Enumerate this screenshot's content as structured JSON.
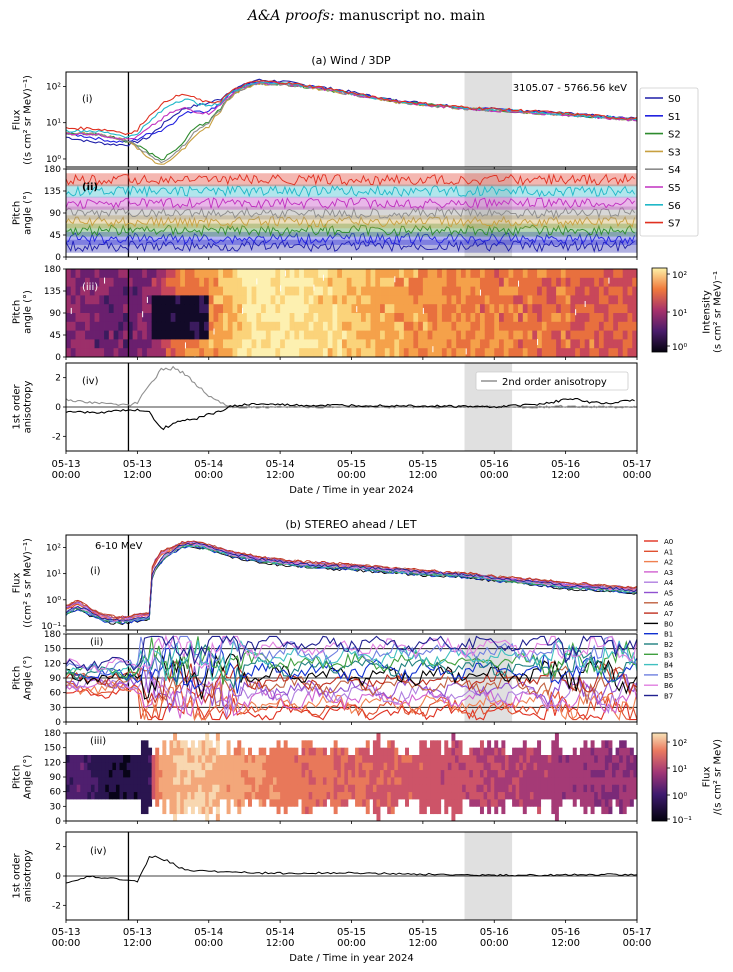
{
  "header": {
    "italic": "A&A proofs:",
    "rest": "manuscript no. main"
  },
  "colors": {
    "wind_sectors": [
      "#1f1fa8",
      "#2222e0",
      "#2e8b2e",
      "#c8a040",
      "#8c8c8c",
      "#c030c0",
      "#20b8c8",
      "#e03020"
    ],
    "stereo_sectors": [
      "#e03020",
      "#e05030",
      "#f08050",
      "#d060d0",
      "#b080e0",
      "#9050d0",
      "#c06040",
      "#c03020",
      "#000000",
      "#1030d0",
      "#208080",
      "#40a040",
      "#40c0c0",
      "#7080e0",
      "#e080e0",
      "#202090"
    ],
    "shade": "#e0e0e0",
    "event_line": "#000000"
  },
  "chart_data": [
    {
      "type": "line",
      "title": "(a) Wind / 3DP",
      "panel": "(i)",
      "annotation": "3105.07 - 5766.56 keV",
      "ylabel": "Flux\n((s cm² sr MeV)⁻¹)",
      "yscale": "log",
      "ylim": [
        0.6,
        250
      ],
      "yticks": [
        "10⁰",
        "10¹",
        "10²"
      ],
      "xlim": [
        0,
        96
      ],
      "x_unit": "hours since 2024-05-13 00:00",
      "event_x": 10.5,
      "shade": [
        67,
        75
      ],
      "legend": [
        "S0",
        "S1",
        "S2",
        "S3",
        "S4",
        "S5",
        "S6",
        "S7"
      ],
      "series": [
        {
          "name": "S0",
          "x": [
            0,
            4,
            8,
            10.5,
            12,
            14,
            16,
            18,
            20,
            22,
            24,
            26,
            28,
            30,
            32,
            36,
            40,
            44,
            48,
            52,
            56,
            60,
            64,
            68,
            72,
            76,
            80,
            84,
            88,
            92,
            96
          ],
          "values": [
            4,
            3,
            2.5,
            2.5,
            3,
            4,
            8,
            15,
            25,
            30,
            35,
            45,
            80,
            110,
            150,
            140,
            110,
            90,
            70,
            50,
            40,
            35,
            30,
            25,
            24,
            22,
            20,
            18,
            16,
            14,
            13
          ]
        },
        {
          "name": "S1",
          "x": [
            0,
            4,
            8,
            10.5,
            12,
            14,
            16,
            18,
            20,
            22,
            24,
            26,
            28,
            30,
            32,
            36,
            40,
            44,
            48,
            52,
            56,
            60,
            64,
            68,
            72,
            76,
            80,
            84,
            88,
            92,
            96
          ],
          "values": [
            5,
            4,
            3,
            3,
            3.5,
            5,
            6,
            10,
            18,
            22,
            20,
            35,
            70,
            100,
            130,
            125,
            105,
            85,
            65,
            48,
            38,
            33,
            28,
            25,
            23,
            21,
            19,
            17,
            15,
            14,
            12
          ]
        },
        {
          "name": "S2",
          "x": [
            0,
            4,
            8,
            10.5,
            12,
            14,
            16,
            18,
            20,
            22,
            24,
            26,
            28,
            30,
            32,
            36,
            40,
            44,
            48,
            52,
            56,
            60,
            64,
            68,
            72,
            76,
            80,
            84,
            88,
            92,
            96
          ],
          "values": [
            5,
            5,
            4,
            3,
            2.5,
            1.5,
            0.9,
            1.5,
            3,
            8,
            10,
            25,
            60,
            95,
            120,
            120,
            100,
            80,
            62,
            47,
            37,
            32,
            28,
            24,
            22,
            20,
            18,
            17,
            15,
            13,
            12
          ]
        },
        {
          "name": "S3",
          "x": [
            0,
            4,
            8,
            10.5,
            12,
            14,
            16,
            18,
            20,
            22,
            24,
            26,
            28,
            30,
            32,
            36,
            40,
            44,
            48,
            52,
            56,
            60,
            64,
            68,
            72,
            76,
            80,
            84,
            88,
            92,
            96
          ],
          "values": [
            5,
            5,
            4,
            3,
            2,
            1,
            0.7,
            1,
            2,
            5,
            8,
            20,
            55,
            90,
            115,
            115,
            98,
            78,
            60,
            46,
            36,
            31,
            27,
            24,
            22,
            20,
            18,
            16,
            15,
            13,
            12
          ]
        },
        {
          "name": "S4",
          "x": [
            0,
            4,
            8,
            10.5,
            12,
            14,
            16,
            18,
            20,
            22,
            24,
            26,
            28,
            30,
            32,
            36,
            40,
            44,
            48,
            52,
            56,
            60,
            64,
            68,
            72,
            76,
            80,
            84,
            88,
            92,
            96
          ],
          "values": [
            5,
            5,
            4,
            3,
            2.2,
            1.2,
            0.8,
            1.2,
            2.5,
            6,
            9,
            22,
            58,
            92,
            118,
            118,
            99,
            79,
            61,
            46,
            36,
            31,
            27,
            24,
            22,
            20,
            18,
            16,
            15,
            13,
            12
          ]
        },
        {
          "name": "S5",
          "x": [
            0,
            4,
            8,
            10.5,
            12,
            14,
            16,
            18,
            20,
            22,
            24,
            26,
            28,
            30,
            32,
            36,
            40,
            44,
            48,
            52,
            56,
            60,
            64,
            68,
            72,
            76,
            80,
            84,
            88,
            92,
            96
          ],
          "values": [
            5,
            5,
            4,
            3.5,
            4,
            7,
            12,
            20,
            25,
            20,
            18,
            30,
            65,
            100,
            125,
            120,
            100,
            82,
            63,
            47,
            37,
            32,
            28,
            24,
            22,
            20,
            18,
            17,
            15,
            13,
            12
          ]
        },
        {
          "name": "S6",
          "x": [
            0,
            4,
            8,
            10.5,
            12,
            14,
            16,
            18,
            20,
            22,
            24,
            26,
            28,
            30,
            32,
            36,
            40,
            44,
            48,
            52,
            56,
            60,
            64,
            68,
            72,
            76,
            80,
            84,
            88,
            92,
            96
          ],
          "values": [
            6,
            6,
            5,
            4,
            5,
            10,
            20,
            35,
            45,
            35,
            28,
            35,
            70,
            105,
            130,
            125,
            105,
            85,
            65,
            48,
            38,
            33,
            28,
            25,
            23,
            21,
            19,
            17,
            15,
            14,
            12
          ]
        },
        {
          "name": "S7",
          "x": [
            0,
            4,
            8,
            10.5,
            12,
            14,
            16,
            18,
            20,
            22,
            24,
            26,
            28,
            30,
            32,
            36,
            40,
            44,
            48,
            52,
            56,
            60,
            64,
            68,
            72,
            76,
            80,
            84,
            88,
            92,
            96
          ],
          "values": [
            7,
            7,
            6,
            5,
            6,
            15,
            30,
            50,
            60,
            45,
            35,
            40,
            75,
            110,
            140,
            130,
            108,
            88,
            66,
            49,
            39,
            34,
            29,
            26,
            24,
            22,
            20,
            18,
            16,
            14,
            13
          ]
        }
      ]
    },
    {
      "type": "line",
      "panel": "(ii)",
      "ylabel": "Pitch\nangle (°)",
      "ylim": [
        0,
        180
      ],
      "yticks": [
        "0",
        "45",
        "90",
        "135",
        "180"
      ],
      "xlim": [
        0,
        96
      ],
      "series": [
        {
          "name": "S0",
          "x": [
            0,
            96
          ],
          "values": [
            22,
            22
          ]
        },
        {
          "name": "S1",
          "x": [
            0,
            96
          ],
          "values": [
            38,
            38
          ]
        },
        {
          "name": "S2",
          "x": [
            0,
            96
          ],
          "values": [
            55,
            55
          ]
        },
        {
          "name": "S3",
          "x": [
            0,
            96
          ],
          "values": [
            72,
            72
          ]
        },
        {
          "name": "S4",
          "x": [
            0,
            96
          ],
          "values": [
            90,
            90
          ]
        },
        {
          "name": "S5",
          "x": [
            0,
            96
          ],
          "values": [
            110,
            110
          ]
        },
        {
          "name": "S6",
          "x": [
            0,
            96
          ],
          "values": [
            135,
            135
          ]
        },
        {
          "name": "S7",
          "x": [
            0,
            96
          ],
          "values": [
            158,
            158
          ]
        }
      ]
    },
    {
      "type": "heatmap",
      "panel": "(iii)",
      "ylabel": "Pitch\nangle (°)",
      "ylim": [
        0,
        180
      ],
      "yticks": [
        "0",
        "45",
        "90",
        "135",
        "180"
      ],
      "xlim": [
        0,
        96
      ],
      "colorbar_label": "Intensity\n(s cm² sr MeV)⁻¹",
      "colorbar_ticks": [
        "10²",
        "10¹",
        "10⁰"
      ],
      "colorbar_range": [
        0.6,
        150
      ]
    },
    {
      "type": "line",
      "panel": "(iv)",
      "ylabel": "1st order\nanisotropy",
      "ylim": [
        -3,
        3
      ],
      "yticks": [
        "2",
        "0",
        "-2"
      ],
      "xlim": [
        0,
        96
      ],
      "legend": [
        "2nd order anisotropy"
      ],
      "series": [
        {
          "name": "1st order",
          "x": [
            0,
            4,
            8,
            10.5,
            12,
            14,
            16,
            18,
            20,
            22,
            24,
            26,
            28,
            32,
            40,
            48,
            56,
            64,
            72,
            80,
            84,
            86,
            88,
            92,
            96
          ],
          "values": [
            -0.3,
            -0.4,
            -0.3,
            -0.2,
            -0.2,
            -0.3,
            -1.5,
            -1.2,
            -0.9,
            -0.8,
            -0.5,
            -0.3,
            0.1,
            0.2,
            0.1,
            0.1,
            0.1,
            0.05,
            0,
            0.2,
            0.5,
            0.6,
            0.3,
            0.3,
            0.5
          ]
        },
        {
          "name": "2nd order anisotropy",
          "x": [
            0,
            4,
            8,
            10.5,
            12,
            14,
            16,
            18,
            20,
            22,
            24,
            26,
            28,
            32,
            40,
            48,
            56,
            64,
            72,
            80,
            84,
            86,
            88,
            92,
            96
          ],
          "values": [
            0.5,
            0.3,
            0.2,
            0.1,
            0.3,
            1.5,
            2.5,
            2.7,
            2.2,
            1.5,
            0.8,
            0.3,
            0,
            0,
            0,
            0,
            0,
            0,
            0,
            0,
            0.05,
            0,
            0,
            0,
            0
          ]
        }
      ]
    },
    {
      "type": "line",
      "title": "(b) STEREO ahead / LET",
      "panel": "(i)",
      "annotation": "6-10 MeV",
      "ylabel": "Flux\n((cm² s sr MeV)⁻¹)",
      "yscale": "log",
      "ylim": [
        0.07,
        300
      ],
      "yticks": [
        "10⁻¹",
        "10⁰",
        "10¹",
        "10²"
      ],
      "xlim": [
        0,
        96
      ],
      "event_x": 10.5,
      "shade": [
        67,
        75
      ],
      "legend": [
        "A0",
        "A1",
        "A2",
        "A3",
        "A4",
        "A5",
        "A6",
        "A7",
        "B0",
        "B1",
        "B2",
        "B3",
        "B4",
        "B5",
        "B6",
        "B7"
      ],
      "series": [
        {
          "name": "A0",
          "x": [
            0,
            2,
            4,
            6,
            8,
            10.5,
            12,
            14,
            16,
            18,
            20,
            22,
            24,
            28,
            32,
            36,
            40,
            48,
            56,
            60,
            64,
            68,
            72,
            76,
            80,
            84,
            88,
            92,
            96
          ],
          "values": [
            0.5,
            0.8,
            0.4,
            0.25,
            0.2,
            0.2,
            0.25,
            0.3,
            60,
            100,
            150,
            140,
            110,
            60,
            40,
            30,
            25,
            20,
            14,
            12,
            10,
            9,
            7,
            6,
            5,
            4,
            3.5,
            3,
            2.6
          ]
        },
        {
          "name": "B0",
          "x": [
            0,
            2,
            4,
            6,
            8,
            10.5,
            12,
            14,
            16,
            18,
            20,
            22,
            24,
            28,
            32,
            36,
            40,
            48,
            56,
            60,
            64,
            68,
            72,
            76,
            80,
            84,
            88,
            92,
            96
          ],
          "values": [
            0.3,
            0.5,
            0.3,
            0.18,
            0.15,
            0.15,
            0.18,
            0.2,
            30,
            70,
            120,
            120,
            90,
            50,
            33,
            25,
            20,
            16,
            12,
            10,
            9,
            8,
            6,
            5,
            4,
            3,
            2.8,
            2.4,
            2
          ]
        }
      ]
    },
    {
      "type": "line",
      "panel": "(ii)",
      "ylabel": "Pitch\nAngle (°)",
      "ylim": [
        0,
        180
      ],
      "yticks": [
        "0",
        "30",
        "60",
        "90",
        "120",
        "150",
        "180"
      ],
      "xlim": [
        0,
        96
      ]
    },
    {
      "type": "heatmap",
      "panel": "(iii)",
      "ylabel": "Pitch\nAngle (°)",
      "ylim": [
        0,
        180
      ],
      "yticks": [
        "0",
        "30",
        "60",
        "90",
        "120",
        "150",
        "180"
      ],
      "xlim": [
        0,
        96
      ],
      "colorbar_label": "Flux\n/(s cm² sr MeV)",
      "colorbar_ticks": [
        "10²",
        "10¹",
        "10⁰",
        "10⁻¹"
      ],
      "colorbar_range": [
        0.07,
        200
      ]
    },
    {
      "type": "line",
      "panel": "(iv)",
      "ylabel": "1st order\nanisotropy",
      "ylim": [
        -3,
        3
      ],
      "yticks": [
        "2",
        "0",
        "-2"
      ],
      "xlim": [
        0,
        96
      ],
      "series": [
        {
          "name": "1st order",
          "x": [
            0,
            2,
            4,
            6,
            8,
            10,
            12,
            14,
            16,
            18,
            20,
            24,
            28,
            32,
            40,
            48,
            56,
            64,
            72,
            80,
            88,
            96
          ],
          "values": [
            -0.5,
            -0.3,
            0,
            -0.2,
            -0.1,
            -0.3,
            -0.4,
            1.3,
            1.2,
            0.8,
            0.4,
            0.3,
            0.3,
            0.2,
            0.2,
            0.2,
            0.15,
            0.1,
            0.05,
            0.05,
            0.1,
            0.1
          ]
        }
      ]
    }
  ],
  "xaxis": {
    "ticks": [
      "05-13\n00:00",
      "05-13\n12:00",
      "05-14\n00:00",
      "05-14\n12:00",
      "05-15\n00:00",
      "05-15\n12:00",
      "05-16\n00:00",
      "05-16\n12:00",
      "05-17\n00:00"
    ],
    "label": "Date / Time in year 2024"
  }
}
